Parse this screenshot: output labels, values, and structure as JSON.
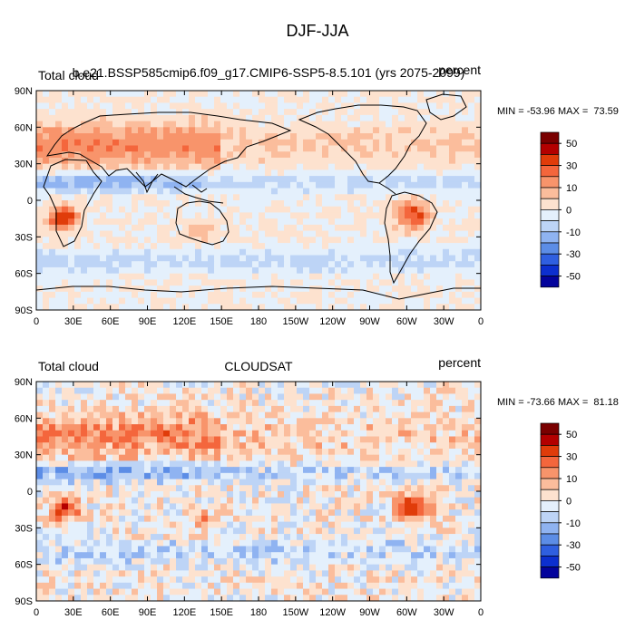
{
  "figure_title": "DJF-JJA",
  "chart_data": [
    {
      "type": "heatmap",
      "panel_id": "top",
      "title": "b.e21.BSSP585cmip6.f09_g17.CMIP6-SSP5-8.5.101 (yrs 2075-2099)",
      "left_label": "Total cloud",
      "right_label": "percent",
      "stats_text": "MIN = -53.96 MAX =  73.59",
      "min": -53.96,
      "max": 73.59,
      "x_ticks": [
        "0",
        "30E",
        "60E",
        "90E",
        "120E",
        "150E",
        "180",
        "150W",
        "120W",
        "90W",
        "60W",
        "30W",
        "0"
      ],
      "y_ticks": [
        "90N",
        "60N",
        "30N",
        "0",
        "30S",
        "60S",
        "90S"
      ],
      "colorbar_labels": [
        "50",
        "30",
        "10",
        "0",
        "-10",
        "-30",
        "-50"
      ],
      "xlim": [
        0,
        360
      ],
      "ylim": [
        -90,
        90
      ]
    },
    {
      "type": "heatmap",
      "panel_id": "bottom",
      "title": "CLOUDSAT",
      "left_label": "Total cloud",
      "right_label": "percent",
      "stats_text": "MIN = -73.66 MAX =  81.18",
      "min": -73.66,
      "max": 81.18,
      "x_ticks": [
        "0",
        "30E",
        "60E",
        "90E",
        "120E",
        "150E",
        "180",
        "150W",
        "120W",
        "90W",
        "60W",
        "30W",
        "0"
      ],
      "y_ticks": [
        "90N",
        "60N",
        "30N",
        "0",
        "30S",
        "60S",
        "90S"
      ],
      "colorbar_labels": [
        "50",
        "30",
        "10",
        "0",
        "-10",
        "-30",
        "-50"
      ],
      "xlim": [
        0,
        360
      ],
      "ylim": [
        -90,
        90
      ]
    }
  ],
  "colormap": [
    "#7a0000",
    "#b30000",
    "#e03c0a",
    "#f4663c",
    "#f8946b",
    "#fbbd9c",
    "#fde2cf",
    "#e4f0fc",
    "#bdd4f6",
    "#8fb3f1",
    "#5c8de6",
    "#2f5fe0",
    "#0c2fcf",
    "#03039c"
  ]
}
